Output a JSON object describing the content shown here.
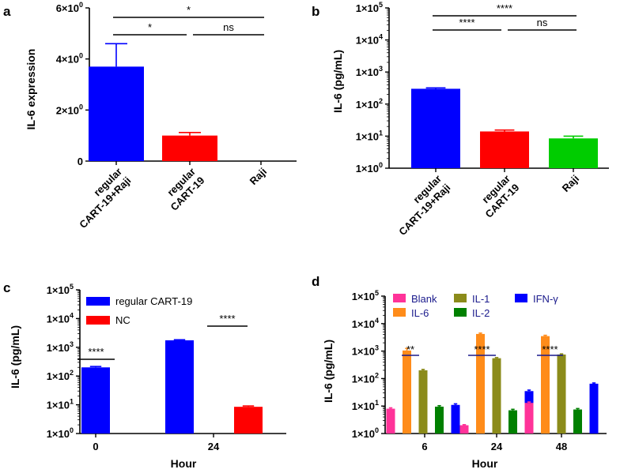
{
  "chart_data": [
    {
      "panel": "a",
      "type": "bar",
      "scale": "linear",
      "ylabel": "IL-6 expression",
      "ylim": [
        0,
        6
      ],
      "yticks": [
        {
          "value": 0,
          "base": "0",
          "exp": ""
        },
        {
          "value": 2,
          "base": "2×10",
          "exp": "0"
        },
        {
          "value": 4,
          "base": "4×10",
          "exp": "0"
        },
        {
          "value": 6,
          "base": "6×10",
          "exp": "0"
        }
      ],
      "categories": [
        {
          "line1": "regular",
          "line2": "CART-19+Raji"
        },
        {
          "line1": "regular",
          "line2": "CART-19"
        },
        {
          "line1": "",
          "line2": "Raji"
        }
      ],
      "values": [
        3.7,
        1.0,
        0
      ],
      "errors": [
        0.9,
        0.12,
        0
      ],
      "colors": [
        "#0000ff",
        "#ff0000",
        "#00cc00"
      ],
      "significance": [
        {
          "from": 0,
          "to": 2,
          "label": "*",
          "level": 2
        },
        {
          "from": 0,
          "to": 1,
          "label": "*",
          "level": 1
        },
        {
          "from": 1,
          "to": 2,
          "label": "ns",
          "level": 1
        }
      ]
    },
    {
      "panel": "b",
      "type": "bar",
      "scale": "log",
      "ylabel": "IL-6 (pg/mL)",
      "ylim": [
        1,
        100000
      ],
      "yticks": [
        {
          "value": 1,
          "base": "1×10",
          "exp": "0"
        },
        {
          "value": 10,
          "base": "1×10",
          "exp": "1"
        },
        {
          "value": 100,
          "base": "1×10",
          "exp": "2"
        },
        {
          "value": 1000,
          "base": "1×10",
          "exp": "3"
        },
        {
          "value": 10000,
          "base": "1×10",
          "exp": "4"
        },
        {
          "value": 100000,
          "base": "1×10",
          "exp": "5"
        }
      ],
      "categories": [
        {
          "line1": "regular",
          "line2": "CART-19+Raji"
        },
        {
          "line1": "regular",
          "line2": "CART-19"
        },
        {
          "line1": "",
          "line2": "Raji"
        }
      ],
      "values": [
        300,
        14,
        8.5
      ],
      "errors": [
        20,
        1.5,
        1.5
      ],
      "colors": [
        "#0000ff",
        "#ff0000",
        "#00cc00"
      ],
      "significance": [
        {
          "from": 0,
          "to": 2,
          "label": "****",
          "level": 2
        },
        {
          "from": 0,
          "to": 1,
          "label": "****",
          "level": 1
        },
        {
          "from": 1,
          "to": 2,
          "label": "ns",
          "level": 1
        }
      ]
    },
    {
      "panel": "c",
      "type": "bar",
      "scale": "log",
      "xlabel": "Hour",
      "ylabel": "IL-6 (pg/mL)",
      "ylim": [
        1,
        100000
      ],
      "yticks": [
        {
          "value": 1,
          "base": "1×10",
          "exp": "0"
        },
        {
          "value": 10,
          "base": "1×10",
          "exp": "1"
        },
        {
          "value": 100,
          "base": "1×10",
          "exp": "2"
        },
        {
          "value": 1000,
          "base": "1×10",
          "exp": "3"
        },
        {
          "value": 10000,
          "base": "1×10",
          "exp": "4"
        },
        {
          "value": 100000,
          "base": "1×10",
          "exp": "5"
        }
      ],
      "categories": [
        "0",
        "24"
      ],
      "series": [
        {
          "name": "regular CART-19",
          "color": "#0000ff",
          "values": [
            200,
            1750
          ],
          "errors": [
            15,
            80
          ]
        },
        {
          "name": "NC",
          "color": "#ff0000",
          "values": [
            0,
            8.5
          ],
          "errors": [
            0,
            0.6
          ]
        }
      ],
      "significance": [
        {
          "category": 0,
          "label": "****"
        },
        {
          "category": 1,
          "label": "****"
        }
      ]
    },
    {
      "panel": "d",
      "type": "bar",
      "scale": "log",
      "xlabel": "Hour",
      "ylabel": "IL-6 (pg/mL)",
      "ylim": [
        1,
        100000
      ],
      "yticks": [
        {
          "value": 1,
          "base": "1×10",
          "exp": "0"
        },
        {
          "value": 10,
          "base": "1×10",
          "exp": "1"
        },
        {
          "value": 100,
          "base": "1×10",
          "exp": "2"
        },
        {
          "value": 1000,
          "base": "1×10",
          "exp": "3"
        },
        {
          "value": 10000,
          "base": "1×10",
          "exp": "4"
        },
        {
          "value": 100000,
          "base": "1×10",
          "exp": "5"
        }
      ],
      "categories": [
        "6",
        "24",
        "48"
      ],
      "series": [
        {
          "name": "Blank",
          "color": "#ff3399",
          "values": [
            8,
            2,
            13
          ],
          "errors": [
            0.6,
            0.1,
            1
          ]
        },
        {
          "name": "IL-6",
          "color": "#ff8c1a",
          "values": [
            1050,
            4200,
            3500
          ],
          "errors": [
            200,
            300,
            250
          ]
        },
        {
          "name": "IL-1",
          "color": "#8b8b1a",
          "values": [
            200,
            550,
            750
          ],
          "errors": [
            15,
            30,
            40
          ]
        },
        {
          "name": "IL-2",
          "color": "#008000",
          "values": [
            9.5,
            7,
            7.5
          ],
          "errors": [
            0.8,
            0.6,
            0.6
          ]
        },
        {
          "name": "IFN-γ",
          "color": "#0000ff",
          "values": [
            11,
            35,
            65
          ],
          "errors": [
            1,
            3,
            4
          ]
        }
      ],
      "significance": [
        {
          "category": 0,
          "label": "**"
        },
        {
          "category": 1,
          "label": "****"
        },
        {
          "category": 2,
          "label": "****"
        }
      ]
    }
  ]
}
